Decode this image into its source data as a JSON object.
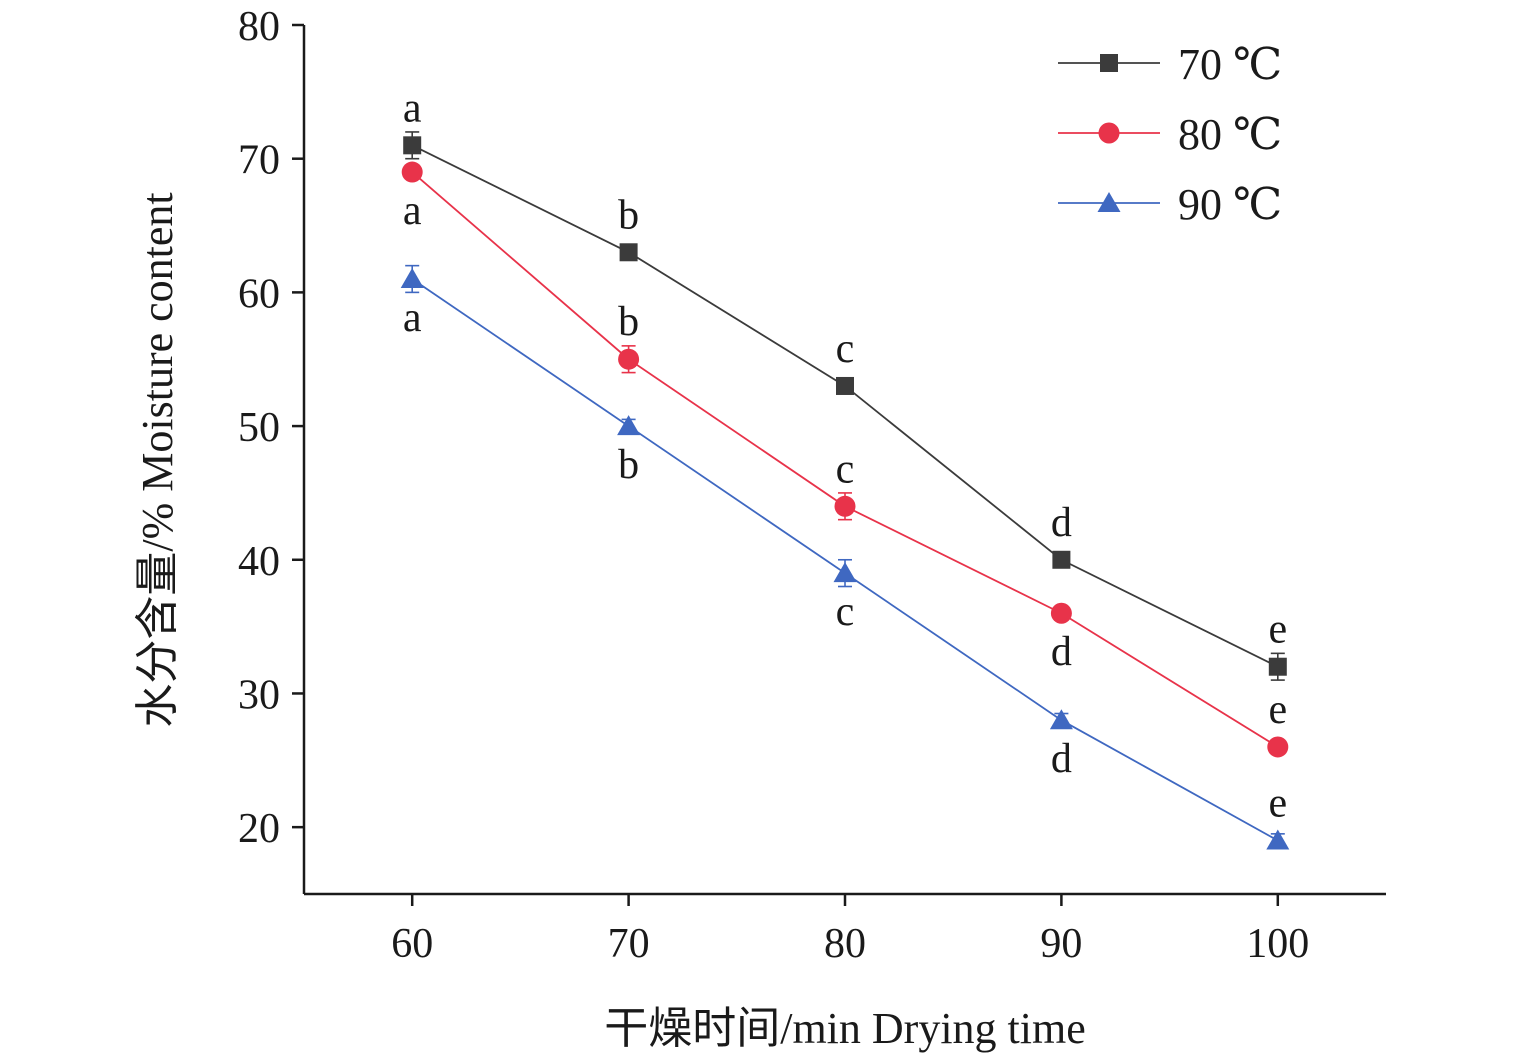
{
  "chart_data": {
    "type": "line",
    "x": [
      60,
      70,
      80,
      90,
      100
    ],
    "xlabel": "干燥时间/min Drying time",
    "ylabel": "水分含量/% Moisture content",
    "xlim": [
      55,
      105
    ],
    "ylim": [
      15,
      80
    ],
    "xticks": [
      60,
      70,
      80,
      90,
      100
    ],
    "yticks": [
      20,
      30,
      40,
      50,
      60,
      70,
      80
    ],
    "grid": false,
    "legend_position": "top-right",
    "series": [
      {
        "name": "70 ℃",
        "color": "#3b3b3b",
        "marker": "square",
        "values": [
          71,
          63,
          53,
          40,
          32
        ],
        "errors": [
          1,
          0.5,
          0.5,
          0.5,
          1
        ],
        "letters": [
          "a",
          "b",
          "c",
          "d",
          "e"
        ],
        "letter_pos": [
          "above",
          "above",
          "above",
          "above",
          "above"
        ]
      },
      {
        "name": "80 ℃",
        "color": "#e8334a",
        "marker": "circle",
        "values": [
          69,
          55,
          44,
          36,
          26
        ],
        "errors": [
          0.5,
          1,
          1,
          0.5,
          0.5
        ],
        "letters": [
          "a",
          "b",
          "c",
          "d",
          "e"
        ],
        "letter_pos": [
          "below",
          "above",
          "above",
          "below",
          "above"
        ]
      },
      {
        "name": "90 ℃",
        "color": "#3f68c1",
        "marker": "triangle",
        "values": [
          61,
          50,
          39,
          28,
          19
        ],
        "errors": [
          1,
          0.5,
          1,
          0.5,
          0.5
        ],
        "letters": [
          "a",
          "b",
          "c",
          "d",
          "e"
        ],
        "letter_pos": [
          "below",
          "below",
          "below",
          "below",
          "above"
        ]
      }
    ]
  }
}
